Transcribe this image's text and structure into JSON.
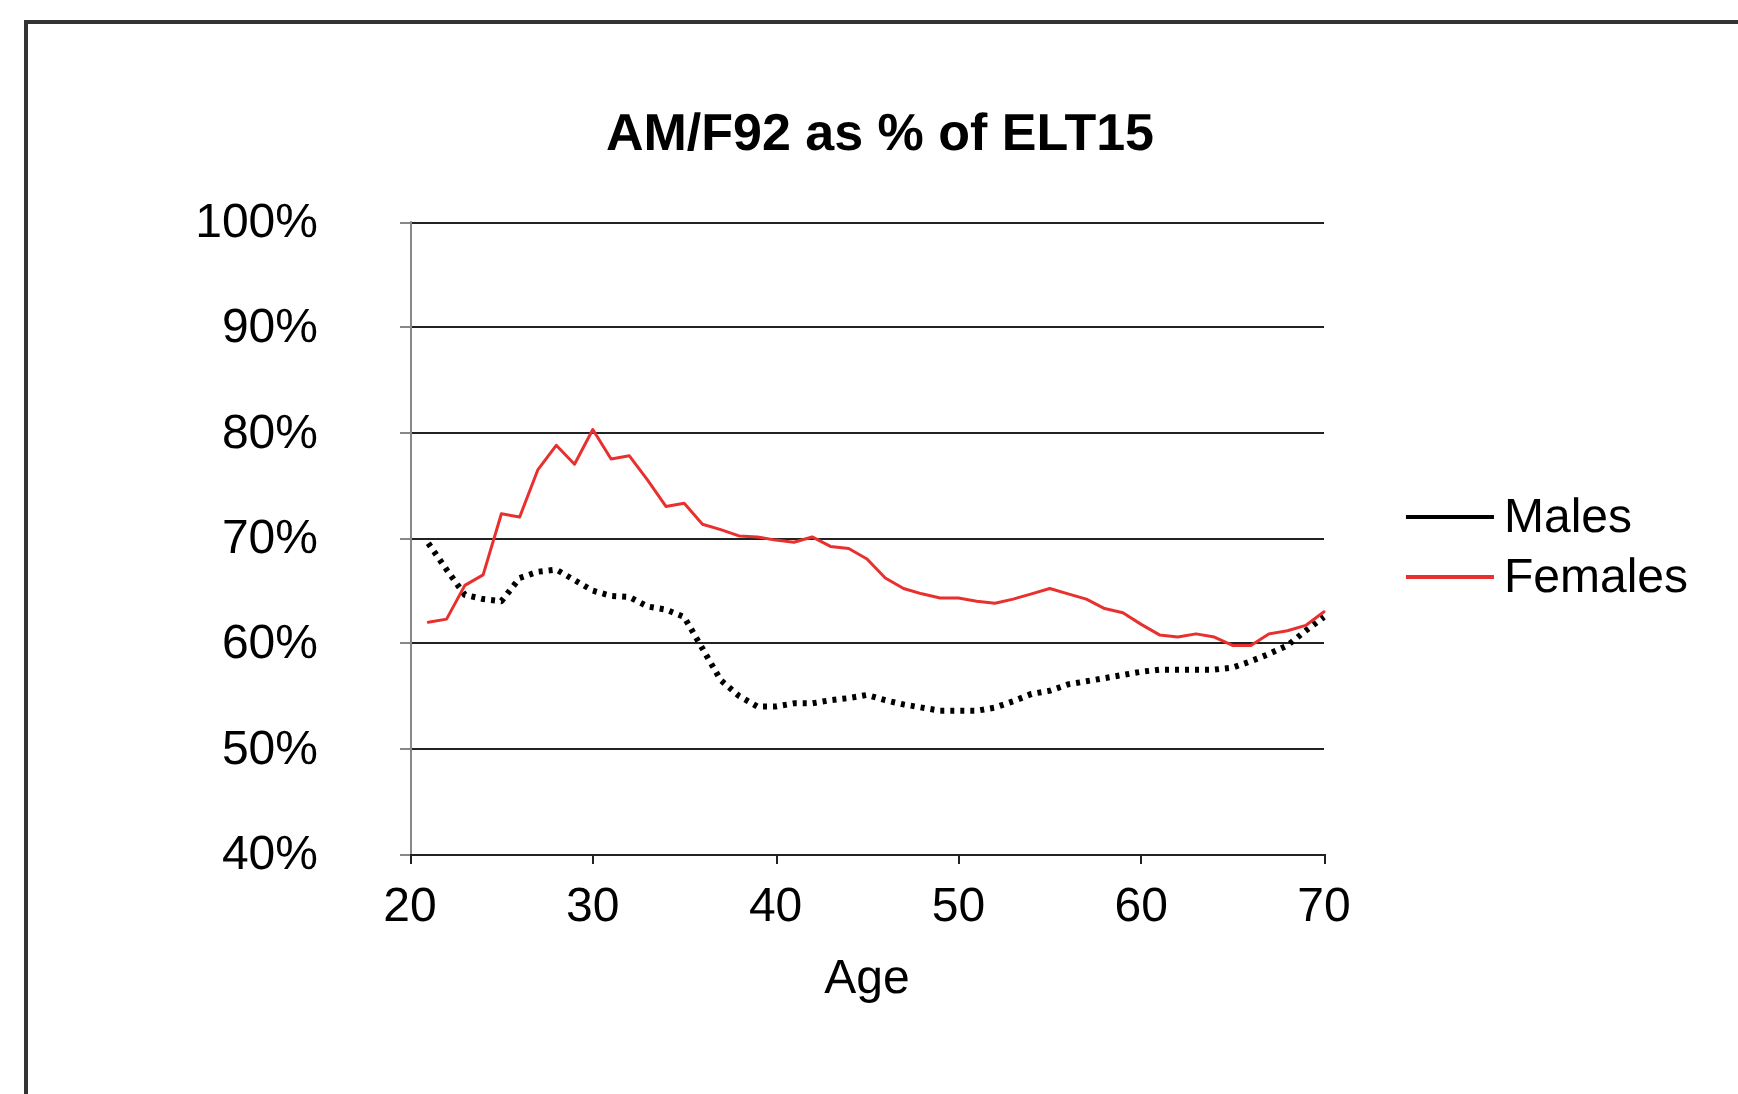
{
  "chart_data": {
    "type": "line",
    "title": "AM/F92 as % of ELT15",
    "xlabel": "Age",
    "x": [
      21,
      22,
      23,
      24,
      25,
      26,
      27,
      28,
      29,
      30,
      31,
      32,
      33,
      34,
      35,
      36,
      37,
      38,
      39,
      40,
      41,
      42,
      43,
      44,
      45,
      46,
      47,
      48,
      49,
      50,
      51,
      52,
      53,
      54,
      55,
      56,
      57,
      58,
      59,
      60,
      61,
      62,
      63,
      64,
      65,
      66,
      67,
      68,
      69,
      70
    ],
    "series": [
      {
        "name": "Males",
        "color": "#000000",
        "line_style": "dotted",
        "values": [
          69.5,
          67,
          64.6,
          64.2,
          64,
          66.2,
          66.8,
          67,
          66,
          65,
          64.5,
          64.4,
          63.5,
          63.2,
          62.5,
          59.5,
          56.5,
          55,
          54,
          54,
          54.3,
          54.3,
          54.6,
          54.8,
          55.1,
          54.6,
          54.2,
          53.9,
          53.6,
          53.6,
          53.6,
          53.9,
          54.5,
          55.2,
          55.5,
          56.1,
          56.4,
          56.7,
          57,
          57.3,
          57.5,
          57.5,
          57.5,
          57.5,
          57.7,
          58.3,
          59,
          59.8,
          61.2,
          62.5
        ]
      },
      {
        "name": "Females",
        "color": "#e8312f",
        "line_style": "solid",
        "values": [
          62,
          62.3,
          65.5,
          66.5,
          72.3,
          72,
          76.5,
          78.8,
          77,
          80.3,
          77.5,
          77.8,
          75.5,
          73,
          73.3,
          71.3,
          70.8,
          70.2,
          70.1,
          69.8,
          69.6,
          70.1,
          69.2,
          69,
          68,
          66.2,
          65.2,
          64.7,
          64.3,
          64.3,
          64,
          63.8,
          64.2,
          64.7,
          65.2,
          64.7,
          64.2,
          63.3,
          62.9,
          61.8,
          60.8,
          60.6,
          60.9,
          60.6,
          59.8,
          59.8,
          60.9,
          61.2,
          61.7,
          63
        ]
      }
    ],
    "xlim": [
      20,
      70
    ],
    "xticks": [
      20,
      30,
      40,
      50,
      60,
      70
    ],
    "ylim": [
      40,
      100
    ],
    "yticks": [
      {
        "value": 40,
        "label": "40%"
      },
      {
        "value": 50,
        "label": "50%"
      },
      {
        "value": 60,
        "label": "60%"
      },
      {
        "value": 70,
        "label": "70%"
      },
      {
        "value": 80,
        "label": "80%"
      },
      {
        "value": 90,
        "label": "90%"
      },
      {
        "value": 100,
        "label": "100%"
      }
    ],
    "grid": "y",
    "legend": "right",
    "marker": "none"
  }
}
